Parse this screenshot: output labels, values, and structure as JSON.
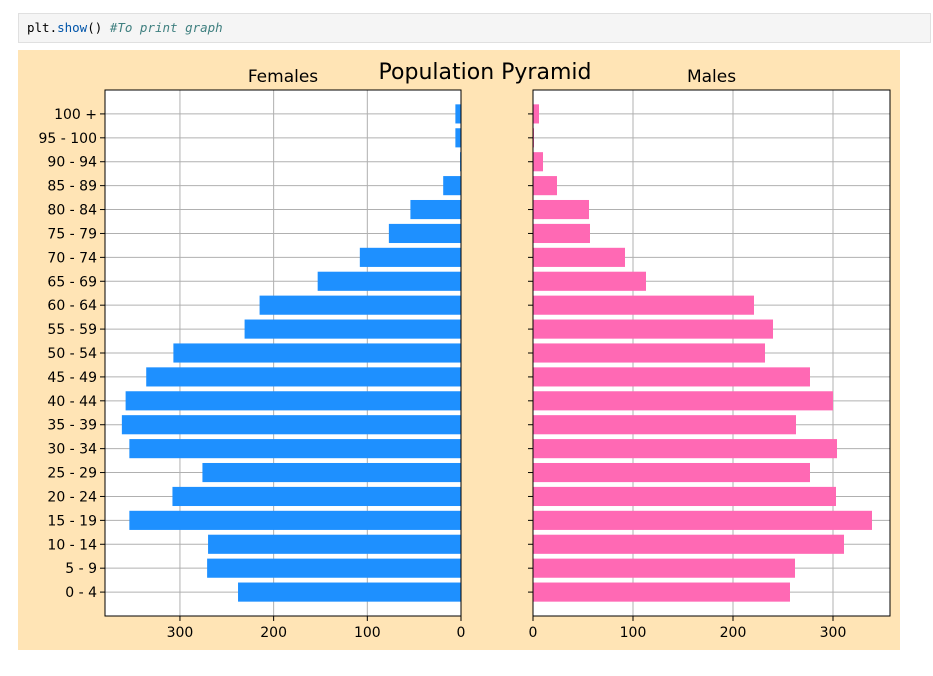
{
  "code_cell": {
    "object": "plt",
    "dot": ".",
    "function": "show",
    "parens": "()",
    "space": " ",
    "comment": "#To print graph"
  },
  "colors": {
    "figure_background": "#ffe4b5",
    "females_bar": "#1e90ff",
    "males_bar": "#ff69b4",
    "grid": "#b0b0b0",
    "axes_frame": "#000000"
  },
  "chart_data": {
    "type": "bar",
    "title": "Population Pyramid",
    "orientation": "horizontal",
    "categories": [
      "0 - 4",
      "5 - 9",
      "10 - 14",
      "15 - 19",
      "20 - 24",
      "25 - 29",
      "30 - 34",
      "35 - 39",
      "40 - 44",
      "45 - 49",
      "50 - 54",
      "55 - 59",
      "60 - 64",
      "65 - 69",
      "70 - 74",
      "75 - 79",
      "80 - 84",
      "85 - 89",
      "90 - 94",
      "95 - 100",
      "100 +"
    ],
    "grid": true,
    "panels": [
      {
        "name": "Females",
        "title": "Females",
        "x_inverted": true,
        "xlim": [
          0,
          380
        ],
        "xticks": [
          0,
          100,
          200,
          300
        ],
        "values": [
          238,
          271,
          270,
          354,
          308,
          276,
          354,
          362,
          358,
          336,
          307,
          231,
          215,
          153,
          108,
          77,
          54,
          19,
          1,
          6,
          6
        ]
      },
      {
        "name": "Males",
        "title": "Males",
        "x_inverted": false,
        "xlim": [
          0,
          357
        ],
        "xticks": [
          0,
          100,
          200,
          300
        ],
        "values": [
          257,
          262,
          311,
          339,
          303,
          277,
          304,
          263,
          300,
          277,
          232,
          240,
          221,
          113,
          92,
          57,
          56,
          24,
          10,
          1,
          6
        ]
      }
    ]
  }
}
